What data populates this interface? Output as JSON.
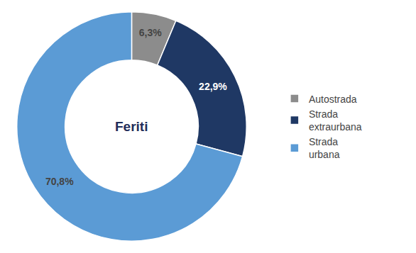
{
  "chart_data": {
    "type": "pie",
    "categories": [
      "Autostrada",
      "Strada\nextraurbana",
      "Strada\nurbana"
    ],
    "values": [
      6.3,
      22.9,
      70.8
    ],
    "value_labels": [
      "6,3%",
      "22,9%",
      "70,8%"
    ],
    "colors": [
      "#8c8c8c",
      "#1f3864",
      "#5b9bd5"
    ],
    "annotations": [
      {
        "text": "Feriti",
        "color": "#1f2d5a"
      }
    ],
    "data_labels": true,
    "legend": "right"
  }
}
